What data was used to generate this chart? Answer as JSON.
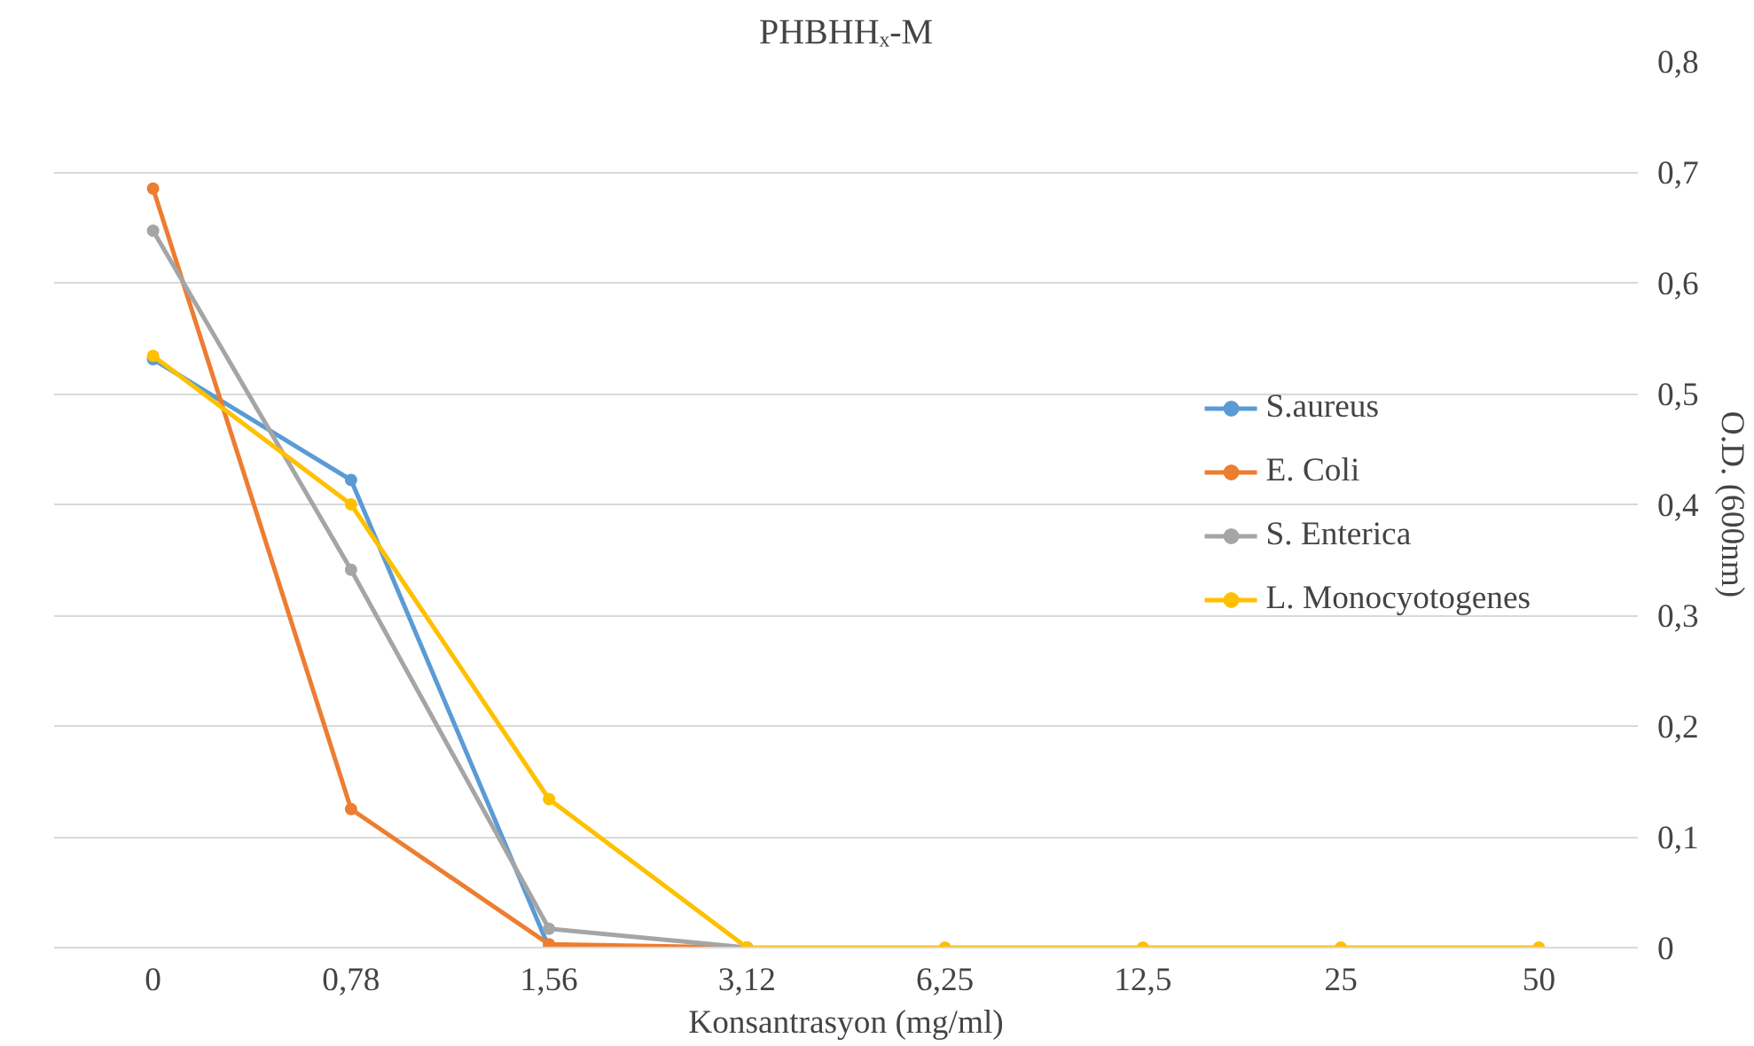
{
  "chart_data": {
    "type": "line",
    "title": "PHBHHₓ-M",
    "xlabel": "Konsantrasyon (mg/ml)",
    "ylabel": "O.D. (600nm)",
    "categories": [
      "0",
      "0,78",
      "1,56",
      "3,12",
      "6,25",
      "12,5",
      "25",
      "50"
    ],
    "series": [
      {
        "name": "S.aureus",
        "color": "#5b9bd5",
        "values": [
          0.531,
          0.422,
          0,
          null,
          null,
          null,
          null,
          null
        ]
      },
      {
        "name": "E. Coli",
        "color": "#ed7d31",
        "values": [
          0.685,
          0.125,
          0.003,
          0,
          null,
          null,
          null,
          null
        ]
      },
      {
        "name": "S. Enterica",
        "color": "#a5a5a5",
        "values": [
          0.647,
          0.341,
          0.017,
          0,
          null,
          null,
          null,
          null
        ]
      },
      {
        "name": "L. Monocyotogenes",
        "color": "#ffc000",
        "values": [
          0.534,
          0.4,
          0.134,
          0,
          0,
          0,
          0,
          0
        ]
      }
    ],
    "ylim": [
      0,
      0.8
    ],
    "yticks": [
      0,
      {
        "value": 0.1,
        "label": "0,1"
      },
      {
        "value": 0.2,
        "label": "0,2"
      },
      {
        "value": 0.3,
        "label": "0,3"
      },
      {
        "value": 0.4,
        "label": "0,4"
      },
      {
        "value": 0.5,
        "label": "0,5"
      },
      {
        "value": 0.6,
        "label": "0,6"
      },
      {
        "value": 0.7,
        "label": "0,7"
      },
      {
        "value": 0.8,
        "label": "0,8"
      }
    ],
    "grid": "y",
    "legend": "right",
    "marker": "circle",
    "line_style": "solid"
  }
}
